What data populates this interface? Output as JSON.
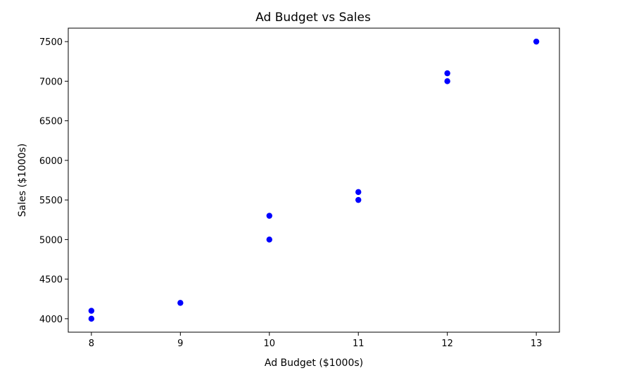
{
  "chart_data": {
    "type": "scatter",
    "title": "Ad Budget vs Sales",
    "xlabel": "Ad Budget ($1000s)",
    "ylabel": "Sales ($1000s)",
    "xlim": [
      7.74,
      13.26
    ],
    "ylim": [
      3830,
      7670
    ],
    "xticks": [
      8,
      9,
      10,
      11,
      12,
      13
    ],
    "yticks": [
      4000,
      4500,
      5000,
      5500,
      6000,
      6500,
      7000,
      7500
    ],
    "grid": false,
    "marker_color": "#0000ff",
    "points": [
      {
        "x": 8,
        "y": 4000
      },
      {
        "x": 8,
        "y": 4100
      },
      {
        "x": 9,
        "y": 4200
      },
      {
        "x": 10,
        "y": 5000
      },
      {
        "x": 10,
        "y": 5300
      },
      {
        "x": 11,
        "y": 5500
      },
      {
        "x": 11,
        "y": 5600
      },
      {
        "x": 12,
        "y": 7000
      },
      {
        "x": 12,
        "y": 7100
      },
      {
        "x": 13,
        "y": 7500
      }
    ]
  }
}
